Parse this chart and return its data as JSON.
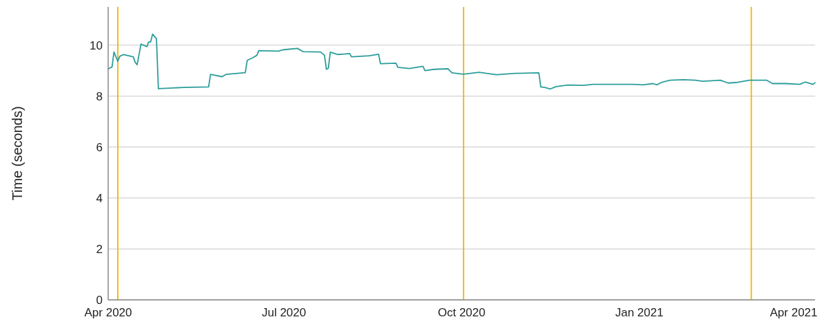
{
  "chart_data": {
    "type": "line",
    "ylabel": "Time (seconds)",
    "x": [
      "2020-04-01",
      "2020-04-03",
      "2020-04-04",
      "2020-04-06",
      "2020-04-07",
      "2020-04-09",
      "2020-04-14",
      "2020-04-15",
      "2020-04-16",
      "2020-04-18",
      "2020-04-21",
      "2020-04-22",
      "2020-04-23",
      "2020-04-24",
      "2020-04-26",
      "2020-04-27",
      "2020-05-03",
      "2020-05-10",
      "2020-05-23",
      "2020-05-24",
      "2020-05-30",
      "2020-06-01",
      "2020-06-11",
      "2020-06-12",
      "2020-06-15",
      "2020-06-17",
      "2020-06-18",
      "2020-06-28",
      "2020-07-01",
      "2020-07-08",
      "2020-07-11",
      "2020-07-20",
      "2020-07-22",
      "2020-07-23",
      "2020-07-24",
      "2020-07-25",
      "2020-07-29",
      "2020-08-01",
      "2020-08-04",
      "2020-08-05",
      "2020-08-14",
      "2020-08-19",
      "2020-08-20",
      "2020-08-28",
      "2020-08-29",
      "2020-09-04",
      "2020-09-11",
      "2020-09-12",
      "2020-09-17",
      "2020-09-24",
      "2020-09-26",
      "2020-10-02",
      "2020-10-10",
      "2020-10-19",
      "2020-10-29",
      "2020-11-10",
      "2020-11-11",
      "2020-11-13",
      "2020-11-16",
      "2020-11-19",
      "2020-11-25",
      "2020-12-03",
      "2020-12-08",
      "2020-12-29",
      "2021-01-03",
      "2021-01-08",
      "2021-01-10",
      "2021-01-13",
      "2021-01-17",
      "2021-01-24",
      "2021-01-30",
      "2021-02-03",
      "2021-02-12",
      "2021-02-16",
      "2021-02-20",
      "2021-02-27",
      "2021-03-08",
      "2021-03-11",
      "2021-03-18",
      "2021-03-25",
      "2021-03-28",
      "2021-04-01",
      "2021-04-02"
    ],
    "series": [
      {
        "color": "#2a9d9a",
        "values": [
          9.07,
          9.14,
          9.73,
          9.36,
          9.56,
          9.63,
          9.54,
          9.32,
          9.23,
          10.04,
          9.94,
          10.12,
          10.13,
          10.43,
          10.25,
          8.29,
          8.31,
          8.34,
          8.36,
          8.85,
          8.76,
          8.85,
          8.92,
          9.4,
          9.51,
          9.6,
          9.78,
          9.76,
          9.82,
          9.87,
          9.74,
          9.73,
          9.6,
          9.05,
          9.09,
          9.72,
          9.63,
          9.65,
          9.67,
          9.54,
          9.58,
          9.64,
          9.27,
          9.29,
          9.13,
          9.08,
          9.17,
          9.0,
          9.05,
          9.07,
          8.91,
          8.86,
          8.93,
          8.84,
          8.89,
          8.91,
          8.36,
          8.34,
          8.28,
          8.37,
          8.43,
          8.42,
          8.46,
          8.46,
          8.44,
          8.49,
          8.44,
          8.55,
          8.62,
          8.64,
          8.62,
          8.58,
          8.62,
          8.51,
          8.53,
          8.62,
          8.62,
          8.49,
          8.49,
          8.46,
          8.55,
          8.46,
          8.52
        ]
      }
    ],
    "xlim": [
      "2020-04-01",
      "2021-04-02"
    ],
    "xticks": [
      {
        "value": "2020-04-01",
        "label": "Apr 2020"
      },
      {
        "value": "2020-07-01",
        "label": "Jul 2020"
      },
      {
        "value": "2020-10-01",
        "label": "Oct 2020"
      },
      {
        "value": "2021-01-01",
        "label": "Jan 2021"
      },
      {
        "value": "2021-04-01",
        "label": "Apr 2021"
      }
    ],
    "ylim": [
      0,
      11.5
    ],
    "yticks": [
      0,
      2,
      4,
      6,
      8,
      10
    ],
    "grid": "y",
    "line_style": "solid",
    "marker": "none",
    "ref_lines": [
      {
        "axis": "x",
        "value": "2020-04-06",
        "color": "#f0b400"
      },
      {
        "axis": "x",
        "value": "2020-10-02",
        "color": "#f0b400"
      },
      {
        "axis": "x",
        "value": "2021-02-28",
        "color": "#f0b400"
      }
    ]
  }
}
